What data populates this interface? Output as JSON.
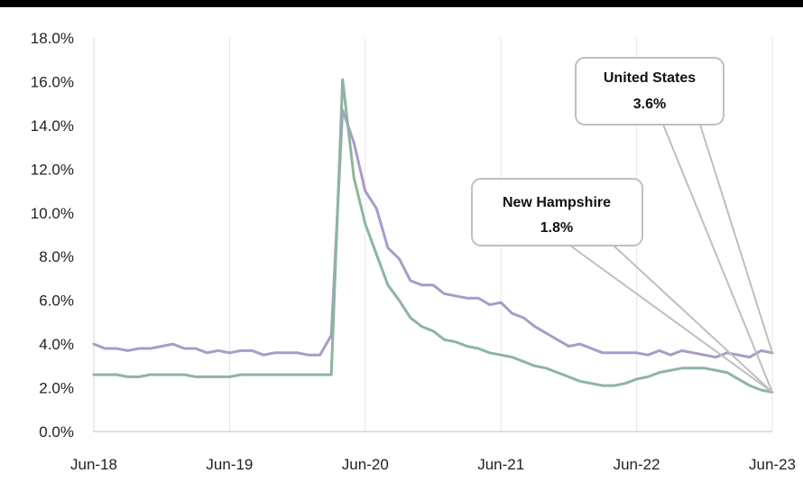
{
  "chart_data": {
    "type": "line",
    "title": "",
    "xlabel": "",
    "ylabel": "",
    "ylim": [
      0,
      18
    ],
    "y_ticks": [
      "0.0%",
      "2.0%",
      "4.0%",
      "6.0%",
      "8.0%",
      "10.0%",
      "12.0%",
      "14.0%",
      "16.0%",
      "18.0%"
    ],
    "x_ticks": [
      "Jun-18",
      "Jun-19",
      "Jun-20",
      "Jun-21",
      "Jun-22",
      "Jun-23"
    ],
    "grid": "vertical",
    "colors": {
      "us": "#a89cc8",
      "nh": "#8db59f",
      "callout_border": "#bfbfbf",
      "title_bar": "#000000"
    },
    "x_start": "2018-06",
    "series": [
      {
        "name": "United States",
        "values": [
          4.0,
          3.8,
          3.8,
          3.7,
          3.8,
          3.8,
          3.9,
          4.0,
          3.8,
          3.8,
          3.6,
          3.7,
          3.6,
          3.7,
          3.7,
          3.5,
          3.6,
          3.6,
          3.6,
          3.5,
          3.5,
          4.4,
          14.7,
          13.2,
          11.0,
          10.2,
          8.4,
          7.9,
          6.9,
          6.7,
          6.7,
          6.3,
          6.2,
          6.1,
          6.1,
          5.8,
          5.9,
          5.4,
          5.2,
          4.8,
          4.5,
          4.2,
          3.9,
          4.0,
          3.8,
          3.6,
          3.6,
          3.6,
          3.6,
          3.5,
          3.7,
          3.5,
          3.7,
          3.6,
          3.5,
          3.4,
          3.6,
          3.5,
          3.4,
          3.7,
          3.6
        ]
      },
      {
        "name": "New Hampshire",
        "values": [
          2.6,
          2.6,
          2.6,
          2.5,
          2.5,
          2.6,
          2.6,
          2.6,
          2.6,
          2.5,
          2.5,
          2.5,
          2.5,
          2.6,
          2.6,
          2.6,
          2.6,
          2.6,
          2.6,
          2.6,
          2.6,
          2.6,
          16.1,
          11.6,
          9.5,
          8.1,
          6.7,
          6.0,
          5.2,
          4.8,
          4.6,
          4.2,
          4.1,
          3.9,
          3.8,
          3.6,
          3.5,
          3.4,
          3.2,
          3.0,
          2.9,
          2.7,
          2.5,
          2.3,
          2.2,
          2.1,
          2.1,
          2.2,
          2.4,
          2.5,
          2.7,
          2.8,
          2.9,
          2.9,
          2.9,
          2.8,
          2.7,
          2.4,
          2.1,
          1.9,
          1.8
        ]
      }
    ],
    "annotations": [
      {
        "label": "United States",
        "value": "3.6%"
      },
      {
        "label": "New Hampshire",
        "value": "1.8%"
      }
    ]
  }
}
